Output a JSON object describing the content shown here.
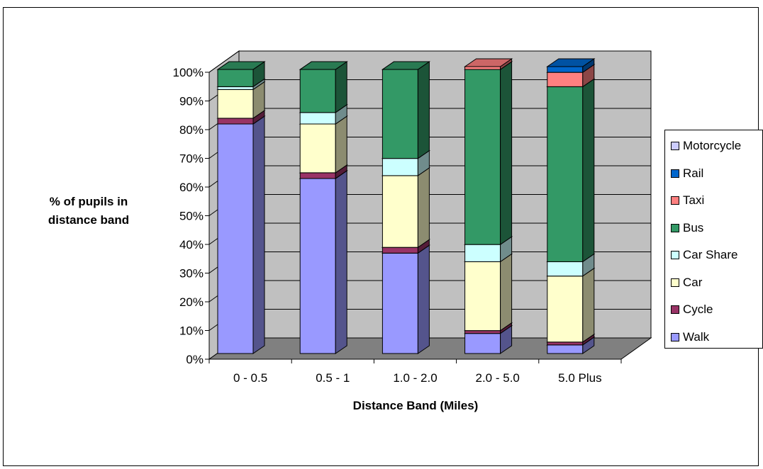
{
  "chart_data": {
    "type": "bar",
    "stacked": true,
    "three_d": true,
    "categories": [
      "0 - 0.5",
      "0.5 - 1",
      "1.0 - 2.0",
      "2.0 - 5.0",
      "5.0 Plus"
    ],
    "series": [
      {
        "name": "Walk",
        "color": "#9999ff",
        "values": [
          80,
          61,
          35,
          7,
          3
        ]
      },
      {
        "name": "Cycle",
        "color": "#993366",
        "values": [
          2,
          2,
          2,
          1,
          1
        ]
      },
      {
        "name": "Car",
        "color": "#ffffcc",
        "values": [
          10,
          17,
          25,
          24,
          23
        ]
      },
      {
        "name": "Car Share",
        "color": "#ccffff",
        "values": [
          1,
          4,
          6,
          6,
          5
        ]
      },
      {
        "name": "Bus",
        "color": "#339966",
        "values": [
          6,
          15,
          31,
          61,
          61
        ]
      },
      {
        "name": "Taxi",
        "color": "#ff8080",
        "values": [
          0,
          0,
          0,
          1,
          5
        ]
      },
      {
        "name": "Rail",
        "color": "#0066cc",
        "values": [
          0,
          0,
          0,
          0,
          2
        ]
      },
      {
        "name": "Motorcycle",
        "color": "#ccccff",
        "values": [
          0,
          0,
          0,
          0,
          0
        ]
      }
    ],
    "y_ticks": [
      "0%",
      "10%",
      "20%",
      "30%",
      "40%",
      "50%",
      "60%",
      "70%",
      "80%",
      "90%",
      "100%"
    ],
    "ylim": [
      0,
      100
    ],
    "xlabel": "Distance Band (Miles)",
    "ylabel_lines": [
      "% of pupils in",
      "distance band"
    ],
    "legend_position": "right",
    "grid": true,
    "wall_color": "#c0c0c0",
    "floor_color": "#808080"
  }
}
